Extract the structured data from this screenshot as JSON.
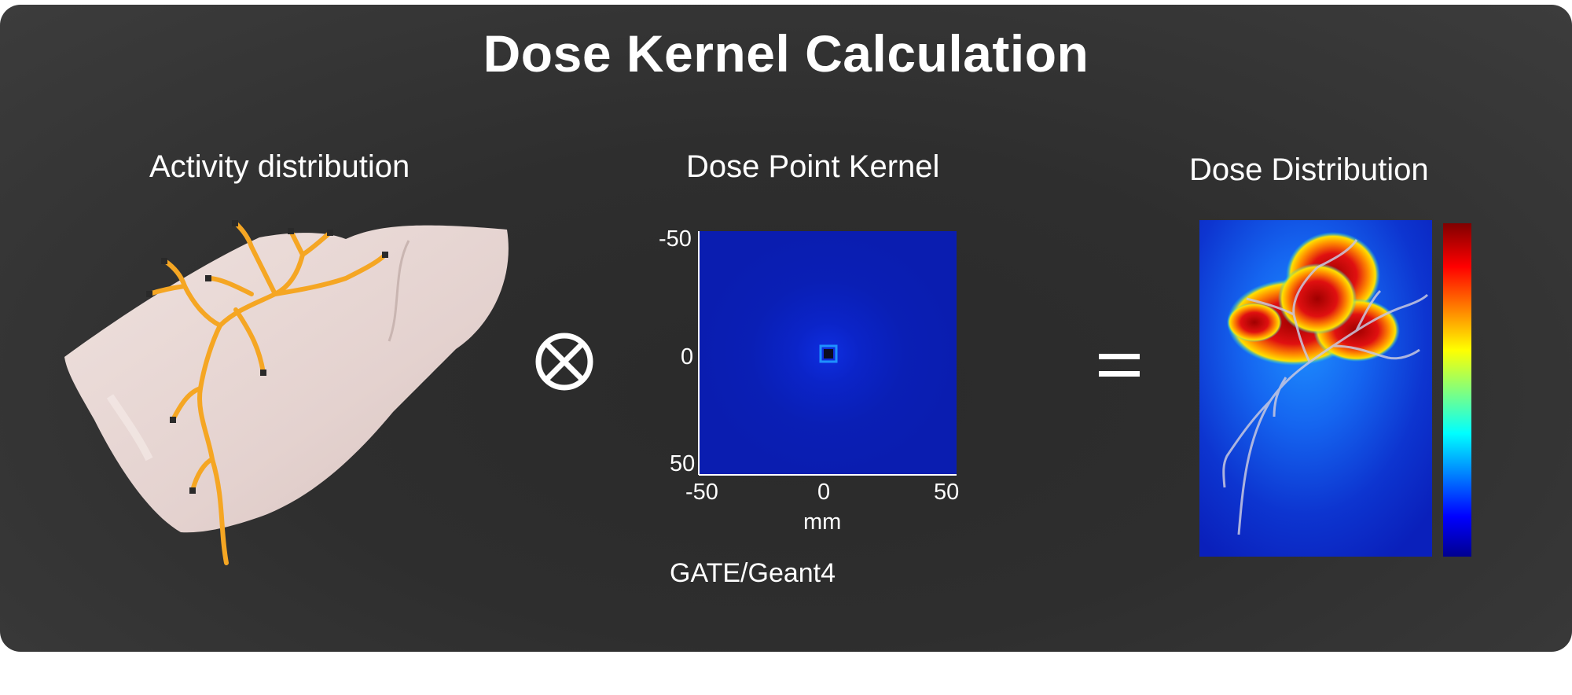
{
  "title": "Dose Kernel Calculation",
  "panels": {
    "activity": {
      "label": "Activity distribution"
    },
    "kernel": {
      "label": "Dose Point Kernel",
      "y_ticks": [
        "-50",
        "0",
        "50"
      ],
      "x_ticks": [
        "-50",
        "0",
        "50"
      ],
      "x_unit": "mm",
      "caption": "GATE/Geant4"
    },
    "dose": {
      "label": "Dose Distribution"
    }
  },
  "operators": {
    "convolve": "⊗",
    "equals": "="
  },
  "colors": {
    "background": "#2e2e2e",
    "vessel": "#f5a623",
    "liver": "#e7d6d3",
    "kernel_field": "#0a1fb5"
  },
  "icons": [
    "convolution-operator-icon",
    "equals-icon",
    "liver-icon",
    "colorbar-icon"
  ]
}
